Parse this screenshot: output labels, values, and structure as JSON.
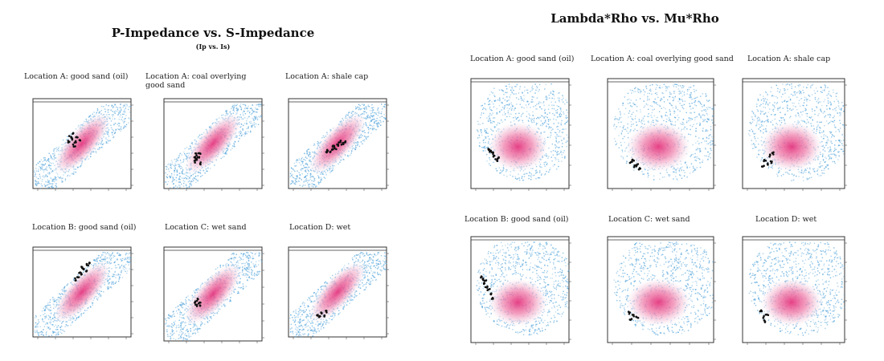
{
  "colors": {
    "background_cloud": "#5aa8dc",
    "core_cloud": "#e4367e",
    "points": "#111111"
  },
  "chart_data": [
    {
      "type": "heatmap",
      "title": "P-Impedance vs. S-Impedance",
      "subtitle": "(Ip vs. Is)",
      "panels": [
        {
          "caption": "Location A: good sand (oil)",
          "cluster": [
            [
              0.4,
              0.45
            ],
            [
              0.38,
              0.42
            ],
            [
              0.43,
              0.48
            ],
            [
              0.45,
              0.42
            ],
            [
              0.4,
              0.38
            ],
            [
              0.42,
              0.52
            ],
            [
              0.47,
              0.46
            ],
            [
              0.36,
              0.48
            ]
          ]
        },
        {
          "caption": "Location A: coal overlying good sand",
          "cluster": [
            [
              0.32,
              0.7
            ],
            [
              0.35,
              0.66
            ],
            [
              0.33,
              0.62
            ],
            [
              0.37,
              0.72
            ],
            [
              0.34,
              0.68
            ],
            [
              0.36,
              0.6
            ],
            [
              0.31,
              0.66
            ]
          ]
        },
        {
          "caption": "Location A: shale cap",
          "cluster": [
            [
              0.4,
              0.58
            ],
            [
              0.45,
              0.56
            ],
            [
              0.5,
              0.52
            ],
            [
              0.55,
              0.5
            ],
            [
              0.48,
              0.55
            ],
            [
              0.42,
              0.6
            ],
            [
              0.52,
              0.48
            ],
            [
              0.46,
              0.52
            ],
            [
              0.38,
              0.6
            ],
            [
              0.58,
              0.48
            ]
          ]
        },
        {
          "caption": "Location B: good sand (oil)",
          "cluster": [
            [
              0.48,
              0.28
            ],
            [
              0.52,
              0.24
            ],
            [
              0.56,
              0.2
            ],
            [
              0.5,
              0.3
            ],
            [
              0.46,
              0.34
            ],
            [
              0.54,
              0.26
            ],
            [
              0.58,
              0.18
            ],
            [
              0.44,
              0.36
            ],
            [
              0.5,
              0.22
            ]
          ]
        },
        {
          "caption": "Location C: wet sand",
          "cluster": [
            [
              0.32,
              0.58
            ],
            [
              0.36,
              0.6
            ],
            [
              0.34,
              0.56
            ],
            [
              0.38,
              0.62
            ],
            [
              0.33,
              0.62
            ]
          ]
        },
        {
          "caption": "Location D: wet",
          "cluster": [
            [
              0.3,
              0.76
            ],
            [
              0.34,
              0.74
            ],
            [
              0.38,
              0.72
            ],
            [
              0.32,
              0.78
            ],
            [
              0.36,
              0.76
            ]
          ]
        }
      ]
    },
    {
      "type": "heatmap",
      "title": "Lambda*Rho vs. Mu*Rho",
      "subtitle": "",
      "panels": [
        {
          "caption": "Location A: good sand (oil)",
          "cluster": [
            [
              0.2,
              0.66
            ],
            [
              0.24,
              0.7
            ],
            [
              0.22,
              0.68
            ],
            [
              0.28,
              0.72
            ],
            [
              0.18,
              0.64
            ],
            [
              0.26,
              0.74
            ]
          ]
        },
        {
          "caption": "Location A: coal overlying good sand",
          "cluster": [
            [
              0.24,
              0.74
            ],
            [
              0.28,
              0.78
            ],
            [
              0.26,
              0.8
            ],
            [
              0.3,
              0.82
            ],
            [
              0.22,
              0.76
            ]
          ]
        },
        {
          "caption": "Location A: shale cap",
          "cluster": [
            [
              0.22,
              0.74
            ],
            [
              0.26,
              0.7
            ],
            [
              0.3,
              0.68
            ],
            [
              0.24,
              0.78
            ],
            [
              0.28,
              0.76
            ],
            [
              0.2,
              0.8
            ]
          ]
        },
        {
          "caption": "Location B: good sand (oil)",
          "cluster": [
            [
              0.1,
              0.38
            ],
            [
              0.14,
              0.44
            ],
            [
              0.18,
              0.5
            ],
            [
              0.12,
              0.4
            ],
            [
              0.16,
              0.48
            ],
            [
              0.2,
              0.54
            ],
            [
              0.22,
              0.58
            ],
            [
              0.15,
              0.42
            ]
          ]
        },
        {
          "caption": "Location C: wet sand",
          "cluster": [
            [
              0.2,
              0.72
            ],
            [
              0.24,
              0.74
            ],
            [
              0.28,
              0.76
            ],
            [
              0.22,
              0.78
            ]
          ]
        },
        {
          "caption": "Location D: wet",
          "cluster": [
            [
              0.18,
              0.7
            ],
            [
              0.2,
              0.76
            ],
            [
              0.22,
              0.8
            ],
            [
              0.24,
              0.74
            ]
          ]
        }
      ]
    }
  ]
}
